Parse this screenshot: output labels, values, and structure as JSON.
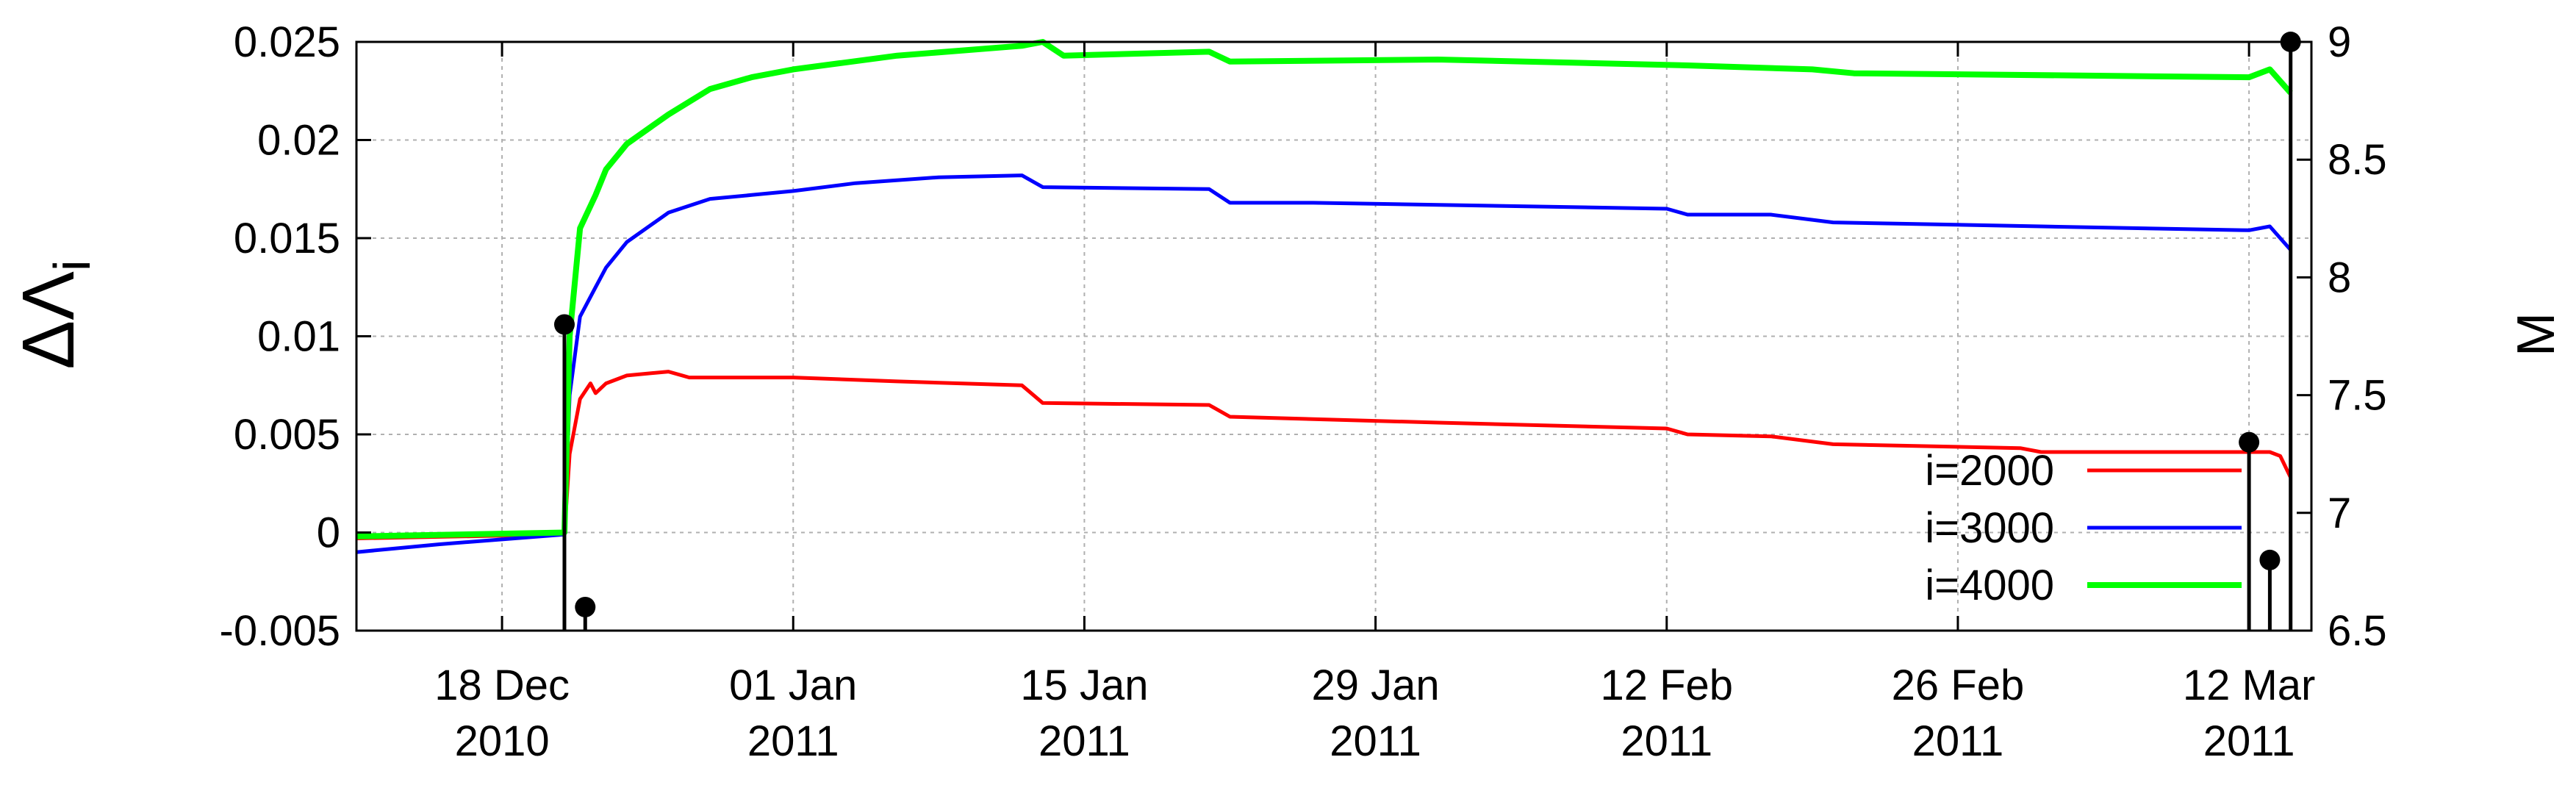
{
  "chart_data": {
    "type": "line",
    "title": "",
    "ylabel": "ΔΛ",
    "ylabel_subscript": "i",
    "y2label": "M",
    "ylim": [
      -0.005,
      0.025
    ],
    "y2lim": [
      6.5,
      9
    ],
    "xlim": [
      "2010-12-11",
      "2011-03-15"
    ],
    "grid": true,
    "legend_position": "bottom-right",
    "y_ticks": [
      "-0.005",
      "0",
      "0.005",
      "0.01",
      "0.015",
      "0.02",
      "0.025"
    ],
    "y2_ticks": [
      "6.5",
      "7",
      "7.5",
      "8",
      "8.5",
      "9"
    ],
    "x_ticks": [
      {
        "date": "2010-12-18",
        "line1": "18 Dec",
        "line2": "2010"
      },
      {
        "date": "2011-01-01",
        "line1": "01 Jan",
        "line2": "2011"
      },
      {
        "date": "2011-01-15",
        "line1": "15 Jan",
        "line2": "2011"
      },
      {
        "date": "2011-01-29",
        "line1": "29 Jan",
        "line2": "2011"
      },
      {
        "date": "2011-02-12",
        "line1": "12 Feb",
        "line2": "2011"
      },
      {
        "date": "2011-02-26",
        "line1": "26 Feb",
        "line2": "2011"
      },
      {
        "date": "2011-03-12",
        "line1": "12 Mar",
        "line2": "2011"
      }
    ],
    "series": [
      {
        "name": "i=2000",
        "color": "#ff0000",
        "points": [
          [
            "2010-12-11",
            -0.0003
          ],
          [
            "2010-12-21 00:00",
            -0.0001
          ],
          [
            "2010-12-21 06:00",
            0.004
          ],
          [
            "2010-12-21 18:00",
            0.0068
          ],
          [
            "2010-12-22 06:00",
            0.0076
          ],
          [
            "2010-12-22 12:00",
            0.0071
          ],
          [
            "2010-12-23",
            0.0076
          ],
          [
            "2010-12-24",
            0.008
          ],
          [
            "2010-12-26",
            0.0082
          ],
          [
            "2010-12-27",
            0.0079
          ],
          [
            "2011-01-01",
            0.0079
          ],
          [
            "2011-01-06",
            0.0077
          ],
          [
            "2011-01-12",
            0.0075
          ],
          [
            "2011-01-13",
            0.0066
          ],
          [
            "2011-01-21",
            0.0065
          ],
          [
            "2011-01-22",
            0.0059
          ],
          [
            "2011-02-01",
            0.0056
          ],
          [
            "2011-02-12",
            0.0053
          ],
          [
            "2011-02-13",
            0.005
          ],
          [
            "2011-02-17",
            0.0049
          ],
          [
            "2011-02-20",
            0.0045
          ],
          [
            "2011-03-01",
            0.0043
          ],
          [
            "2011-03-02",
            0.0041
          ],
          [
            "2011-03-13",
            0.0041
          ],
          [
            "2011-03-13 12:00",
            0.0039
          ],
          [
            "2011-03-14",
            0.0028
          ]
        ]
      },
      {
        "name": "i=3000",
        "color": "#0000ff",
        "points": [
          [
            "2010-12-11",
            -0.001
          ],
          [
            "2010-12-15",
            -0.0006
          ],
          [
            "2010-12-21 00:00",
            -0.0001
          ],
          [
            "2010-12-21 06:00",
            0.007
          ],
          [
            "2010-12-21 18:00",
            0.011
          ],
          [
            "2010-12-22 12:00",
            0.0125
          ],
          [
            "2010-12-23",
            0.0135
          ],
          [
            "2010-12-24",
            0.0148
          ],
          [
            "2010-12-26",
            0.0163
          ],
          [
            "2010-12-28",
            0.017
          ],
          [
            "2010-12-30",
            0.0172
          ],
          [
            "2011-01-01",
            0.0174
          ],
          [
            "2011-01-04",
            0.0178
          ],
          [
            "2011-01-08",
            0.0181
          ],
          [
            "2011-01-12",
            0.0182
          ],
          [
            "2011-01-13",
            0.0176
          ],
          [
            "2011-01-21",
            0.0175
          ],
          [
            "2011-01-22",
            0.0168
          ],
          [
            "2011-01-26",
            0.0168
          ],
          [
            "2011-02-12",
            0.0165
          ],
          [
            "2011-02-13",
            0.0162
          ],
          [
            "2011-02-17",
            0.0162
          ],
          [
            "2011-02-20",
            0.0158
          ],
          [
            "2011-03-02",
            0.0156
          ],
          [
            "2011-03-12",
            0.0154
          ],
          [
            "2011-03-13",
            0.0156
          ],
          [
            "2011-03-14",
            0.0144
          ]
        ]
      },
      {
        "name": "i=4000",
        "color": "#00ff00",
        "points": [
          [
            "2010-12-11",
            -0.0002
          ],
          [
            "2010-12-21 00:00",
            0.0
          ],
          [
            "2010-12-21 06:00",
            0.01
          ],
          [
            "2010-12-21 18:00",
            0.0155
          ],
          [
            "2010-12-22 12:00",
            0.0172
          ],
          [
            "2010-12-23",
            0.0185
          ],
          [
            "2010-12-24",
            0.0198
          ],
          [
            "2010-12-26",
            0.0213
          ],
          [
            "2010-12-28",
            0.0226
          ],
          [
            "2010-12-30",
            0.0232
          ],
          [
            "2011-01-01",
            0.0236
          ],
          [
            "2011-01-06",
            0.0243
          ],
          [
            "2011-01-12",
            0.0248
          ],
          [
            "2011-01-13",
            0.025
          ],
          [
            "2011-01-14",
            0.0243
          ],
          [
            "2011-01-21",
            0.0245
          ],
          [
            "2011-01-22",
            0.024
          ],
          [
            "2011-02-01",
            0.0241
          ],
          [
            "2011-02-13",
            0.0238
          ],
          [
            "2011-02-19",
            0.0236
          ],
          [
            "2011-02-21",
            0.0234
          ],
          [
            "2011-03-12",
            0.0232
          ],
          [
            "2011-03-13",
            0.0236
          ],
          [
            "2011-03-14",
            0.0224
          ]
        ]
      }
    ],
    "impulse_series": {
      "axis": "M",
      "color": "#000000",
      "points": [
        [
          "2010-12-21",
          7.8
        ],
        [
          "2010-12-22",
          6.6
        ],
        [
          "2011-03-12",
          7.3
        ],
        [
          "2011-03-13",
          6.8
        ],
        [
          "2011-03-14",
          9.0
        ]
      ]
    }
  }
}
